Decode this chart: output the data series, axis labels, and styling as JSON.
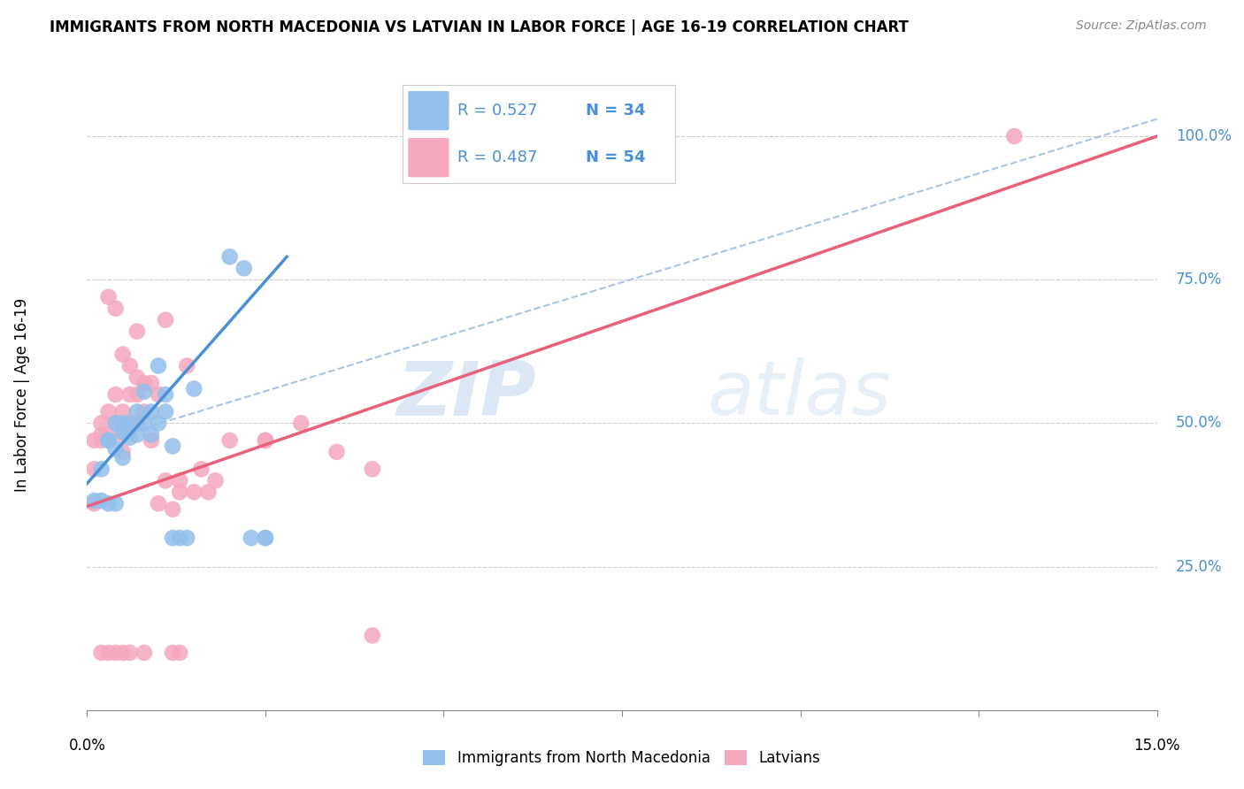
{
  "title": "IMMIGRANTS FROM NORTH MACEDONIA VS LATVIAN IN LABOR FORCE | AGE 16-19 CORRELATION CHART",
  "source": "Source: ZipAtlas.com",
  "ylabel": "In Labor Force | Age 16-19",
  "y_ticks": [
    0.25,
    0.5,
    0.75,
    1.0
  ],
  "y_tick_labels": [
    "25.0%",
    "50.0%",
    "75.0%",
    "100.0%"
  ],
  "xlim": [
    0.0,
    0.15
  ],
  "ylim": [
    0.0,
    1.1
  ],
  "x_tick_positions": [
    0.0,
    0.025,
    0.05,
    0.075,
    0.1,
    0.125,
    0.15
  ],
  "watermark_zip": "ZIP",
  "watermark_atlas": "atlas",
  "legend_R1": "R = 0.527",
  "legend_N1": "N = 34",
  "legend_R2": "R = 0.487",
  "legend_N2": "N = 54",
  "legend_label1": "Immigrants from North Macedonia",
  "legend_label2": "Latvians",
  "blue_color": "#92bfec",
  "pink_color": "#f5a8be",
  "blue_line_color": "#4a90d9",
  "pink_line_color": "#e8607a",
  "dashed_line_color": "#a8c4e8",
  "text_color_blue": "#4a90d9",
  "text_color_dark": "#333333",
  "grid_color": "#cccccc",
  "blue_scatter": [
    [
      0.001,
      0.365
    ],
    [
      0.002,
      0.365
    ],
    [
      0.002,
      0.42
    ],
    [
      0.003,
      0.47
    ],
    [
      0.003,
      0.47
    ],
    [
      0.003,
      0.36
    ],
    [
      0.004,
      0.455
    ],
    [
      0.004,
      0.5
    ],
    [
      0.004,
      0.36
    ],
    [
      0.005,
      0.44
    ],
    [
      0.005,
      0.485
    ],
    [
      0.005,
      0.5
    ],
    [
      0.006,
      0.475
    ],
    [
      0.006,
      0.5
    ],
    [
      0.007,
      0.48
    ],
    [
      0.007,
      0.52
    ],
    [
      0.008,
      0.555
    ],
    [
      0.008,
      0.5
    ],
    [
      0.009,
      0.48
    ],
    [
      0.009,
      0.52
    ],
    [
      0.01,
      0.5
    ],
    [
      0.01,
      0.6
    ],
    [
      0.011,
      0.52
    ],
    [
      0.011,
      0.55
    ],
    [
      0.012,
      0.46
    ],
    [
      0.012,
      0.3
    ],
    [
      0.013,
      0.3
    ],
    [
      0.014,
      0.3
    ],
    [
      0.015,
      0.56
    ],
    [
      0.02,
      0.79
    ],
    [
      0.022,
      0.77
    ],
    [
      0.023,
      0.3
    ],
    [
      0.025,
      0.3
    ],
    [
      0.025,
      0.3
    ]
  ],
  "pink_scatter": [
    [
      0.001,
      0.36
    ],
    [
      0.001,
      0.42
    ],
    [
      0.001,
      0.47
    ],
    [
      0.002,
      0.48
    ],
    [
      0.002,
      0.47
    ],
    [
      0.002,
      0.5
    ],
    [
      0.003,
      0.48
    ],
    [
      0.003,
      0.52
    ],
    [
      0.003,
      0.72
    ],
    [
      0.004,
      0.5
    ],
    [
      0.004,
      0.55
    ],
    [
      0.004,
      0.7
    ],
    [
      0.005,
      0.45
    ],
    [
      0.005,
      0.48
    ],
    [
      0.005,
      0.52
    ],
    [
      0.005,
      0.62
    ],
    [
      0.006,
      0.5
    ],
    [
      0.006,
      0.55
    ],
    [
      0.006,
      0.6
    ],
    [
      0.007,
      0.5
    ],
    [
      0.007,
      0.55
    ],
    [
      0.007,
      0.58
    ],
    [
      0.007,
      0.66
    ],
    [
      0.008,
      0.52
    ],
    [
      0.008,
      0.57
    ],
    [
      0.009,
      0.47
    ],
    [
      0.009,
      0.57
    ],
    [
      0.01,
      0.55
    ],
    [
      0.01,
      0.36
    ],
    [
      0.011,
      0.4
    ],
    [
      0.011,
      0.68
    ],
    [
      0.012,
      0.35
    ],
    [
      0.013,
      0.4
    ],
    [
      0.013,
      0.38
    ],
    [
      0.014,
      0.6
    ],
    [
      0.015,
      0.38
    ],
    [
      0.016,
      0.42
    ],
    [
      0.017,
      0.38
    ],
    [
      0.018,
      0.4
    ],
    [
      0.02,
      0.47
    ],
    [
      0.025,
      0.47
    ],
    [
      0.025,
      0.47
    ],
    [
      0.03,
      0.5
    ],
    [
      0.035,
      0.45
    ],
    [
      0.04,
      0.42
    ],
    [
      0.002,
      0.1
    ],
    [
      0.003,
      0.1
    ],
    [
      0.004,
      0.1
    ],
    [
      0.005,
      0.1
    ],
    [
      0.012,
      0.1
    ],
    [
      0.013,
      0.1
    ],
    [
      0.006,
      0.1
    ],
    [
      0.008,
      0.1
    ],
    [
      0.04,
      0.13
    ],
    [
      0.13,
      1.0
    ]
  ],
  "blue_line_x": [
    0.0,
    0.028
  ],
  "blue_line_y": [
    0.395,
    0.79
  ],
  "pink_line_x": [
    0.0,
    0.15
  ],
  "pink_line_y": [
    0.355,
    1.0
  ],
  "dashed_line_x": [
    0.005,
    0.15
  ],
  "dashed_line_y": [
    0.48,
    1.03
  ]
}
